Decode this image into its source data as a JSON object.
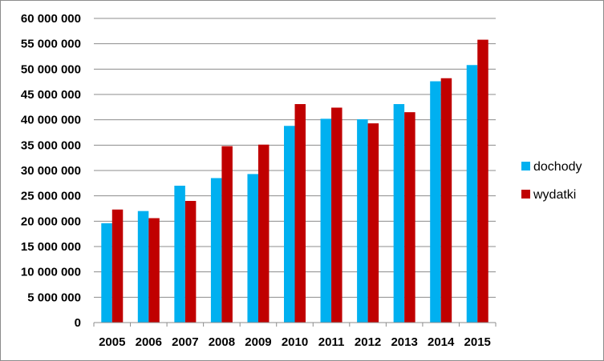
{
  "chart_data": {
    "type": "bar",
    "title": "",
    "xlabel": "",
    "ylabel": "",
    "categories": [
      "2005",
      "2006",
      "2007",
      "2008",
      "2009",
      "2010",
      "2011",
      "2012",
      "2013",
      "2014",
      "2015"
    ],
    "series": [
      {
        "name": "dochody",
        "color": "#00b0f0",
        "values": [
          19600000,
          22000000,
          27000000,
          28500000,
          29300000,
          38800000,
          40200000,
          40100000,
          43100000,
          47600000,
          50800000
        ]
      },
      {
        "name": "wydatki",
        "color": "#c00000",
        "values": [
          22300000,
          20600000,
          24000000,
          34800000,
          35100000,
          43100000,
          42400000,
          39300000,
          41500000,
          48200000,
          55800000
        ]
      }
    ],
    "ylim": [
      0,
      60000000
    ],
    "yticks": [
      "60 000 000",
      "55 000 000",
      "50 000 000",
      "45 000 000",
      "40 000 000",
      "35 000 000",
      "30 000 000",
      "25 000 000",
      "20 000 000",
      "15 000 000",
      "10 000 000",
      "5 000 000",
      "0"
    ],
    "grid": true,
    "legend": "right"
  }
}
